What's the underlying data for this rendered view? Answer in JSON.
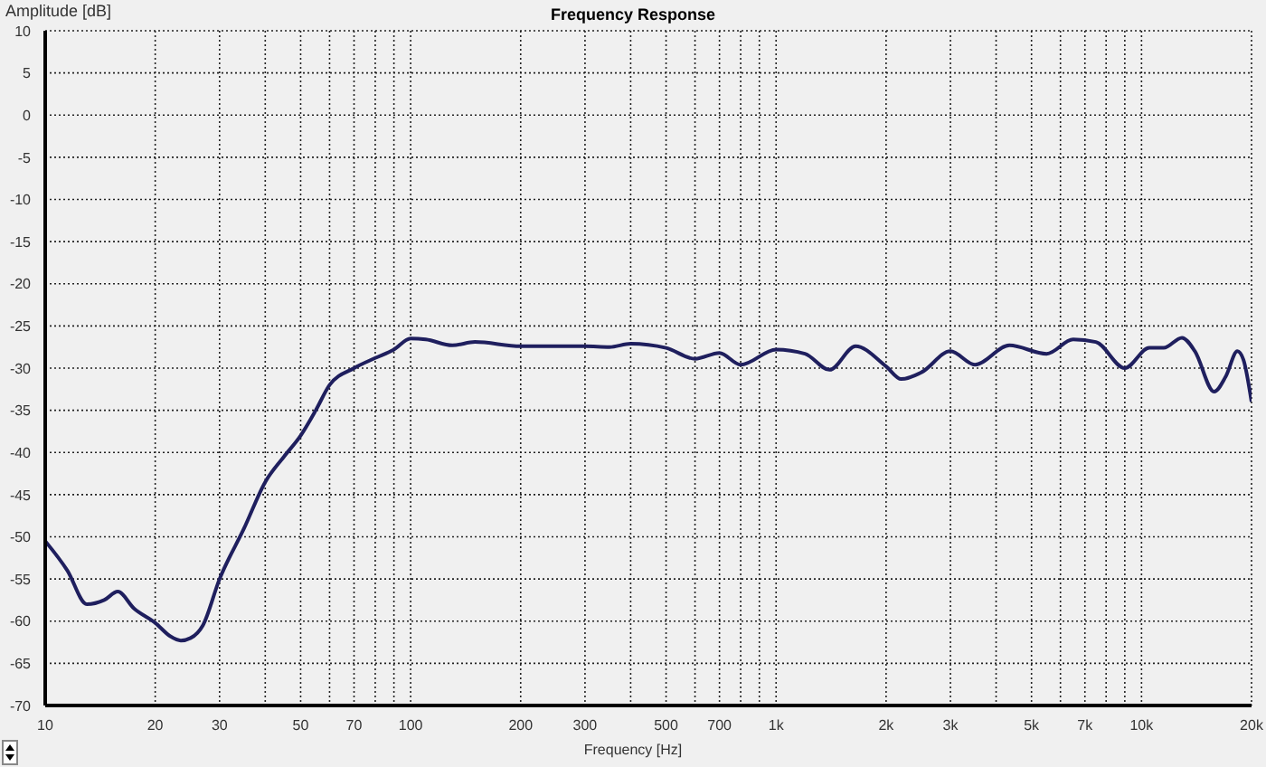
{
  "chart_data": {
    "type": "line",
    "title": "Frequency Response",
    "xlabel": "Frequency [Hz]",
    "ylabel": "Amplitude [dB]",
    "log": "x",
    "grid": true,
    "marker": "none",
    "line_style": "solid",
    "xlim": [
      10,
      20000
    ],
    "ylim": [
      -70,
      10
    ],
    "xticks": [
      10,
      20,
      30,
      {
        "value": 40,
        "label": null
      },
      50,
      {
        "value": 60,
        "label": null
      },
      70,
      {
        "value": 80,
        "label": null
      },
      {
        "value": 90,
        "label": null
      },
      100,
      200,
      300,
      {
        "value": 400,
        "label": null
      },
      500,
      {
        "value": 600,
        "label": null
      },
      700,
      {
        "value": 800,
        "label": null
      },
      {
        "value": 900,
        "label": null
      },
      {
        "value": 1000,
        "label": "1k"
      },
      {
        "value": 2000,
        "label": "2k"
      },
      {
        "value": 3000,
        "label": "3k"
      },
      {
        "value": 4000,
        "label": null
      },
      {
        "value": 5000,
        "label": "5k"
      },
      {
        "value": 6000,
        "label": null
      },
      {
        "value": 7000,
        "label": "7k"
      },
      {
        "value": 8000,
        "label": null
      },
      {
        "value": 9000,
        "label": null
      },
      {
        "value": 10000,
        "label": "10k"
      },
      {
        "value": 20000,
        "label": "20k"
      }
    ],
    "yticks": [
      10,
      5,
      0,
      -5,
      -10,
      -15,
      -20,
      -25,
      -30,
      -35,
      -40,
      -45,
      -50,
      -55,
      -60,
      -65,
      -70
    ],
    "series": [
      {
        "color": "#1f1f5e",
        "x": [
          10,
          11.5,
          13,
          14.5,
          15.8,
          17.5,
          20,
          22,
          23.5,
          25,
          27,
          30,
          35,
          40,
          45,
          50,
          55,
          60,
          70,
          80,
          90,
          100,
          110,
          130,
          150,
          200,
          300,
          350,
          400,
          500,
          600,
          700,
          800,
          1000,
          1200,
          1400,
          1650,
          2000,
          2200,
          2500,
          3000,
          3500,
          4350,
          5500,
          6500,
          7500,
          9000,
          10500,
          11500,
          12900,
          14000,
          15800,
          17000,
          18300,
          19000,
          20000
        ],
        "values": [
          -50.5,
          -54,
          -58,
          -57.5,
          -56.5,
          -58.5,
          -60.2,
          -61.8,
          -62.3,
          -62,
          -60.5,
          -55,
          -49,
          -43.5,
          -40.5,
          -38,
          -35,
          -32,
          -30,
          -28.8,
          -27.8,
          -26.5,
          -26.6,
          -27.3,
          -26.9,
          -27.4,
          -27.4,
          -27.5,
          -27.1,
          -27.6,
          -28.9,
          -28.2,
          -29.6,
          -27.8,
          -28.3,
          -30.2,
          -27.4,
          -29.8,
          -31.3,
          -30.5,
          -28,
          -29.6,
          -27.3,
          -28.3,
          -26.6,
          -26.9,
          -30,
          -27.6,
          -27.6,
          -26.4,
          -28,
          -32.8,
          -31,
          -28,
          -29,
          -34
        ]
      }
    ]
  }
}
